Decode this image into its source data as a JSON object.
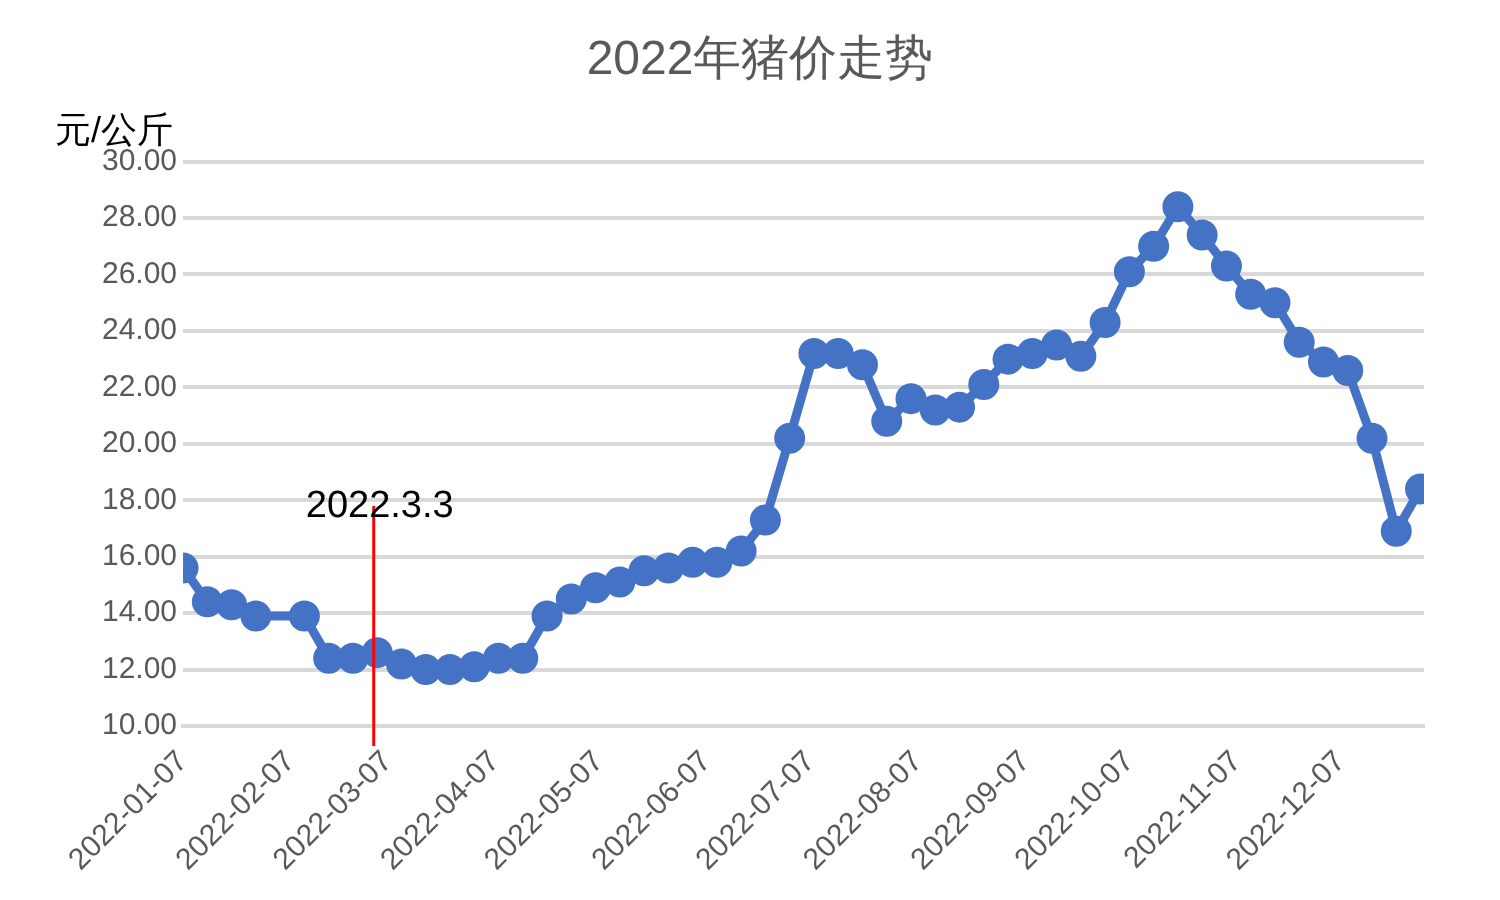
{
  "chart_data": {
    "type": "line",
    "title": "2022年猪价走势",
    "ylabel": "元/公斤",
    "x": [
      "2022-01-07",
      "2022-01-14",
      "2022-01-21",
      "2022-01-28",
      "2022-02-11",
      "2022-02-18",
      "2022-02-25",
      "2022-03-04",
      "2022-03-11",
      "2022-03-18",
      "2022-03-25",
      "2022-04-01",
      "2022-04-08",
      "2022-04-15",
      "2022-04-22",
      "2022-04-29",
      "2022-05-06",
      "2022-05-13",
      "2022-05-20",
      "2022-05-27",
      "2022-06-03",
      "2022-06-10",
      "2022-06-17",
      "2022-06-24",
      "2022-07-01",
      "2022-07-08",
      "2022-07-15",
      "2022-07-22",
      "2022-07-29",
      "2022-08-05",
      "2022-08-12",
      "2022-08-19",
      "2022-08-26",
      "2022-09-02",
      "2022-09-09",
      "2022-09-16",
      "2022-09-23",
      "2022-09-30",
      "2022-10-07",
      "2022-10-14",
      "2022-10-21",
      "2022-10-28",
      "2022-11-04",
      "2022-11-11",
      "2022-11-18",
      "2022-11-25",
      "2022-12-02",
      "2022-12-09",
      "2022-12-16",
      "2022-12-23",
      "2022-12-30"
    ],
    "series": [
      {
        "color": "#4472c4",
        "values": [
          15.6,
          14.4,
          14.3,
          13.9,
          13.9,
          12.4,
          12.4,
          12.6,
          12.2,
          12.0,
          12.0,
          12.1,
          12.4,
          12.4,
          13.9,
          14.5,
          14.9,
          15.1,
          15.5,
          15.6,
          15.8,
          15.8,
          16.2,
          17.3,
          20.2,
          23.2,
          23.2,
          22.8,
          20.8,
          21.6,
          21.2,
          21.3,
          22.1,
          23.0,
          23.2,
          23.5,
          23.1,
          24.3,
          26.1,
          27.0,
          28.4,
          27.4,
          26.3,
          25.3,
          25.0,
          23.6,
          22.9,
          22.6,
          20.2,
          16.9,
          18.4
        ]
      }
    ],
    "xlim": [
      "2022-01-07",
      "2022-12-31"
    ],
    "xticks": [
      "2022-01-07",
      "2022-02-07",
      "2022-03-07",
      "2022-04-07",
      "2022-05-07",
      "2022-06-07",
      "2022-07-07",
      "2022-08-07",
      "2022-09-07",
      "2022-10-07",
      "2022-11-07",
      "2022-12-07"
    ],
    "ylim": [
      10,
      30
    ],
    "yticks": [
      {
        "value": 10,
        "label": "10.00"
      },
      {
        "value": 12,
        "label": "12.00"
      },
      {
        "value": 14,
        "label": "14.00"
      },
      {
        "value": 16,
        "label": "16.00"
      },
      {
        "value": 18,
        "label": "18.00"
      },
      {
        "value": 20,
        "label": "20.00"
      },
      {
        "value": 22,
        "label": "22.00"
      },
      {
        "value": 24,
        "label": "24.00"
      },
      {
        "value": 26,
        "label": "26.00"
      },
      {
        "value": 28,
        "label": "28.00"
      },
      {
        "value": 30,
        "label": "30.00"
      }
    ],
    "ref_lines": [
      {
        "axis": "x",
        "value": "2022-03-03",
        "label": "2022.3.3",
        "color": "#ff0000"
      }
    ],
    "grid": "y",
    "marker": "circle",
    "line_style": "solid",
    "legend": false
  }
}
